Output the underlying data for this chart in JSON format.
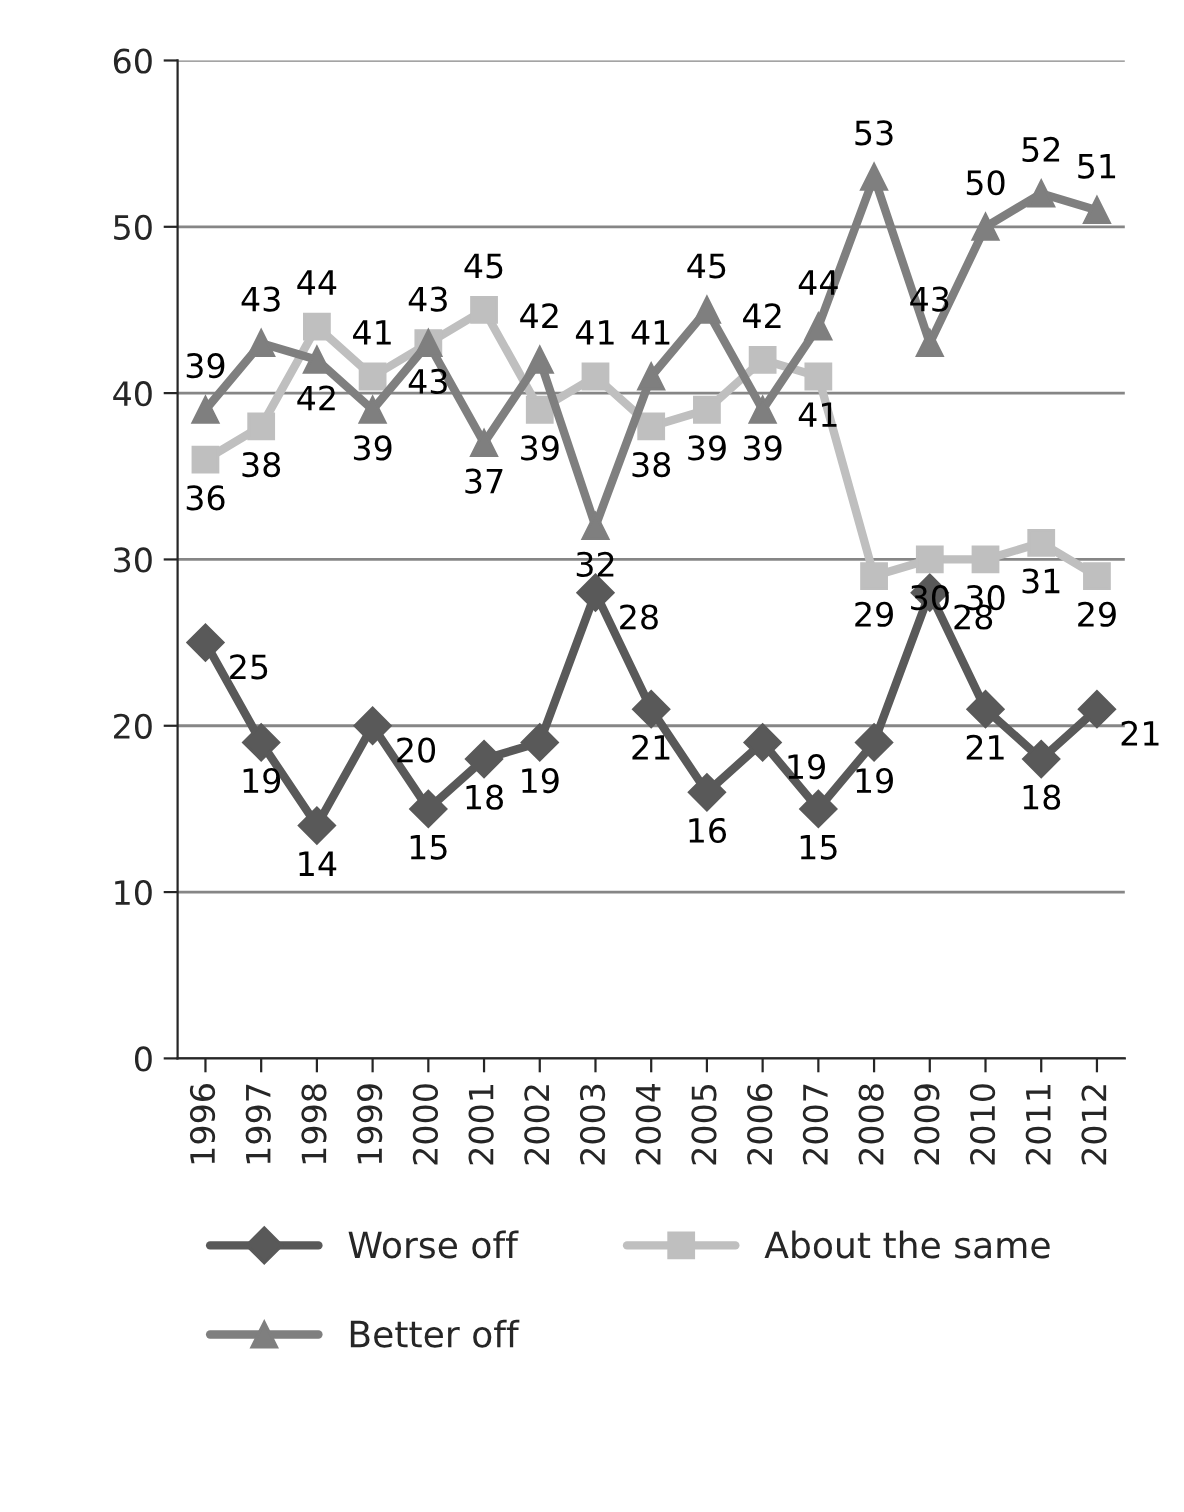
{
  "chart_data": {
    "type": "line",
    "categories": [
      "1996",
      "1997",
      "1998",
      "1999",
      "2000",
      "2001",
      "2002",
      "2003",
      "2004",
      "2005",
      "2006",
      "2007",
      "2008",
      "2009",
      "2010",
      "2011",
      "2012"
    ],
    "series": [
      {
        "name": "Worse off",
        "color": "#595959",
        "marker": "diamond",
        "values": [
          25,
          19,
          14,
          20,
          15,
          18,
          19,
          28,
          21,
          16,
          19,
          15,
          19,
          28,
          21,
          18,
          21
        ]
      },
      {
        "name": "About the same",
        "color": "#bfbfbf",
        "marker": "square",
        "values": [
          36,
          38,
          44,
          41,
          43,
          45,
          39,
          41,
          38,
          39,
          42,
          41,
          29,
          30,
          30,
          31,
          29
        ]
      },
      {
        "name": "Better off",
        "color": "#7f7f7f",
        "marker": "triangle",
        "values": [
          39,
          43,
          42,
          39,
          43,
          37,
          42,
          32,
          41,
          45,
          39,
          44,
          53,
          43,
          50,
          52,
          51
        ]
      }
    ],
    "ylim": [
      0,
      60
    ],
    "yticks": [
      0,
      10,
      20,
      30,
      40,
      50,
      60
    ],
    "grid": "y",
    "legend": "bottom",
    "data_labels": true,
    "line_style": "solid"
  }
}
